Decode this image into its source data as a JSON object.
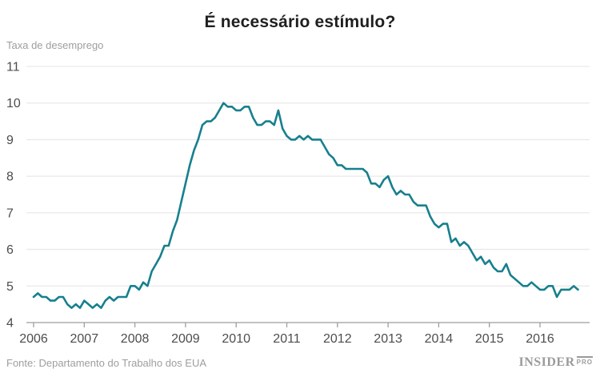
{
  "title": "É necessário estímulo?",
  "y_axis_title": "Taxa de desemprego",
  "source": "Fonte: Departamento do Trabalho dos EUA",
  "logo": {
    "main": "INSIDER",
    "sub": "PRO"
  },
  "colors": {
    "line": "#17808D",
    "grid": "#e9e9e9",
    "baseline": "#9e9e9e",
    "tick": "#9e9e9e",
    "axis_label": "#4d4d4d",
    "title_text": "#1f1f1f",
    "muted_text": "#9e9e9e",
    "logo_text": "#9b9b9b",
    "background": "#ffffff"
  },
  "chart_data": {
    "type": "line",
    "title": "É necessário estímulo?",
    "ylabel": "Taxa de desemprego",
    "x_unit": "month",
    "x_start": "2006-01",
    "x_end": "2016-10",
    "x_tick_labels": [
      "2006",
      "2007",
      "2008",
      "2009",
      "2010",
      "2011",
      "2012",
      "2013",
      "2014",
      "2015",
      "2016"
    ],
    "y_tick_labels": [
      "11",
      "10",
      "9",
      "8",
      "7",
      "6",
      "5",
      "4"
    ],
    "y_ticks": [
      11,
      10,
      9,
      8,
      7,
      6,
      5,
      4
    ],
    "ylim": [
      4,
      11
    ],
    "grid": "horizontal",
    "legend": "none",
    "series": [
      {
        "name": "Taxa de desemprego (EUA, %)",
        "values": [
          4.7,
          4.8,
          4.7,
          4.7,
          4.6,
          4.6,
          4.7,
          4.7,
          4.5,
          4.4,
          4.5,
          4.4,
          4.6,
          4.5,
          4.4,
          4.5,
          4.4,
          4.6,
          4.7,
          4.6,
          4.7,
          4.7,
          4.7,
          5.0,
          5.0,
          4.9,
          5.1,
          5.0,
          5.4,
          5.6,
          5.8,
          6.1,
          6.1,
          6.5,
          6.8,
          7.3,
          7.8,
          8.3,
          8.7,
          9.0,
          9.4,
          9.5,
          9.5,
          9.6,
          9.8,
          10.0,
          9.9,
          9.9,
          9.8,
          9.8,
          9.9,
          9.9,
          9.6,
          9.4,
          9.4,
          9.5,
          9.5,
          9.4,
          9.8,
          9.3,
          9.1,
          9.0,
          9.0,
          9.1,
          9.0,
          9.1,
          9.0,
          9.0,
          9.0,
          8.8,
          8.6,
          8.5,
          8.3,
          8.3,
          8.2,
          8.2,
          8.2,
          8.2,
          8.2,
          8.1,
          7.8,
          7.8,
          7.7,
          7.9,
          8.0,
          7.7,
          7.5,
          7.6,
          7.5,
          7.5,
          7.3,
          7.2,
          7.2,
          7.2,
          6.9,
          6.7,
          6.6,
          6.7,
          6.7,
          6.2,
          6.3,
          6.1,
          6.2,
          6.1,
          5.9,
          5.7,
          5.8,
          5.6,
          5.7,
          5.5,
          5.4,
          5.4,
          5.6,
          5.3,
          5.2,
          5.1,
          5.0,
          5.0,
          5.1,
          5.0,
          4.9,
          4.9,
          5.0,
          5.0,
          4.7,
          4.9,
          4.9,
          4.9,
          5.0,
          4.9
        ]
      }
    ]
  }
}
